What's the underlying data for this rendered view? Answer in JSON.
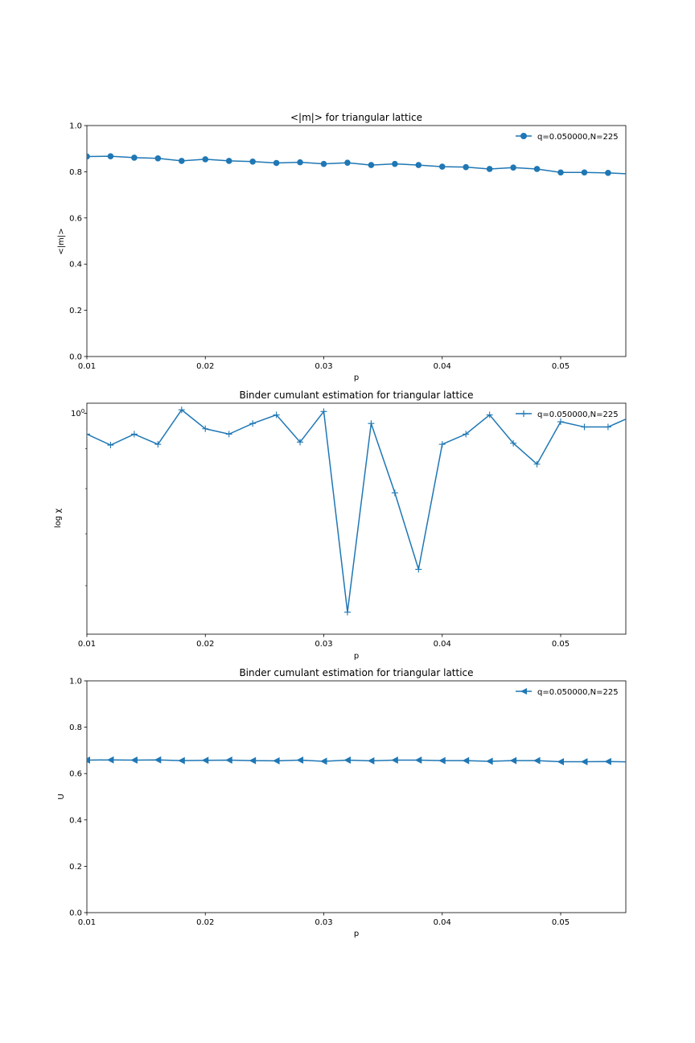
{
  "colors": {
    "series": "#1f77b4",
    "axes": "#000000",
    "background": "#ffffff"
  },
  "chart_data": [
    {
      "type": "line",
      "title": "<|m|> for triangular lattice",
      "xlabel": "p",
      "ylabel": "<|m|>",
      "xlim": [
        0.01,
        0.0555
      ],
      "ylim": [
        0.0,
        1.0
      ],
      "xticks": [
        "0.01",
        "0.02",
        "0.03",
        "0.04",
        "0.05"
      ],
      "yticks": [
        "0.0",
        "0.2",
        "0.4",
        "0.6",
        "0.8",
        "1.0"
      ],
      "marker": "circle",
      "legend_position": "top-right",
      "grid": false,
      "series": [
        {
          "name": "q=0.050000,N=225",
          "x": [
            0.01,
            0.012,
            0.014,
            0.016,
            0.018,
            0.02,
            0.022,
            0.024,
            0.026,
            0.028,
            0.03,
            0.032,
            0.034,
            0.036,
            0.038,
            0.04,
            0.042,
            0.044,
            0.046,
            0.048,
            0.05,
            0.052,
            0.054,
            0.056
          ],
          "values": [
            0.866,
            0.867,
            0.861,
            0.858,
            0.847,
            0.854,
            0.847,
            0.844,
            0.838,
            0.841,
            0.834,
            0.839,
            0.829,
            0.834,
            0.829,
            0.822,
            0.82,
            0.812,
            0.818,
            0.812,
            0.797,
            0.797,
            0.795,
            0.79
          ]
        }
      ]
    },
    {
      "type": "line",
      "title": "Binder cumulant estimation for triangular lattice",
      "xlabel": "p",
      "ylabel": "log χ",
      "yscale": "log",
      "xlim": [
        0.01,
        0.0555
      ],
      "ylim": [
        0.52,
        1.03
      ],
      "xticks": [
        "0.01",
        "0.02",
        "0.03",
        "0.04",
        "0.05"
      ],
      "yticks_major": [
        "10^0"
      ],
      "marker": "plus",
      "legend_position": "top-right",
      "grid": false,
      "series": [
        {
          "name": "q=0.050000,N=225",
          "x": [
            0.01,
            0.012,
            0.014,
            0.016,
            0.018,
            0.02,
            0.022,
            0.024,
            0.026,
            0.028,
            0.03,
            0.032,
            0.034,
            0.036,
            0.038,
            0.04,
            0.042,
            0.044,
            0.046,
            0.048,
            0.05,
            0.052,
            0.054,
            0.056
          ],
          "values": [
            0.94,
            0.91,
            0.94,
            0.912,
            1.01,
            0.955,
            0.94,
            0.97,
            0.995,
            0.918,
            1.005,
            0.555,
            0.97,
            0.79,
            0.63,
            0.912,
            0.94,
            0.995,
            0.915,
            0.86,
            0.975,
            0.96,
            0.96,
            0.99
          ]
        }
      ]
    },
    {
      "type": "line",
      "title": "Binder cumulant estimation for triangular lattice",
      "xlabel": "p",
      "ylabel": "U",
      "xlim": [
        0.01,
        0.0555
      ],
      "ylim": [
        0.0,
        1.0
      ],
      "xticks": [
        "0.01",
        "0.02",
        "0.03",
        "0.04",
        "0.05"
      ],
      "yticks": [
        "0.0",
        "0.2",
        "0.4",
        "0.6",
        "0.8",
        "1.0"
      ],
      "marker": "triangle-left",
      "legend_position": "top-right",
      "grid": false,
      "series": [
        {
          "name": "q=0.050000,N=225",
          "x": [
            0.01,
            0.012,
            0.014,
            0.016,
            0.018,
            0.02,
            0.022,
            0.024,
            0.026,
            0.028,
            0.03,
            0.032,
            0.034,
            0.036,
            0.038,
            0.04,
            0.042,
            0.044,
            0.046,
            0.048,
            0.05,
            0.052,
            0.054,
            0.056
          ],
          "values": [
            0.658,
            0.659,
            0.658,
            0.659,
            0.656,
            0.657,
            0.658,
            0.656,
            0.655,
            0.658,
            0.653,
            0.658,
            0.655,
            0.658,
            0.658,
            0.656,
            0.656,
            0.653,
            0.656,
            0.656,
            0.651,
            0.651,
            0.652,
            0.65
          ]
        }
      ]
    }
  ]
}
